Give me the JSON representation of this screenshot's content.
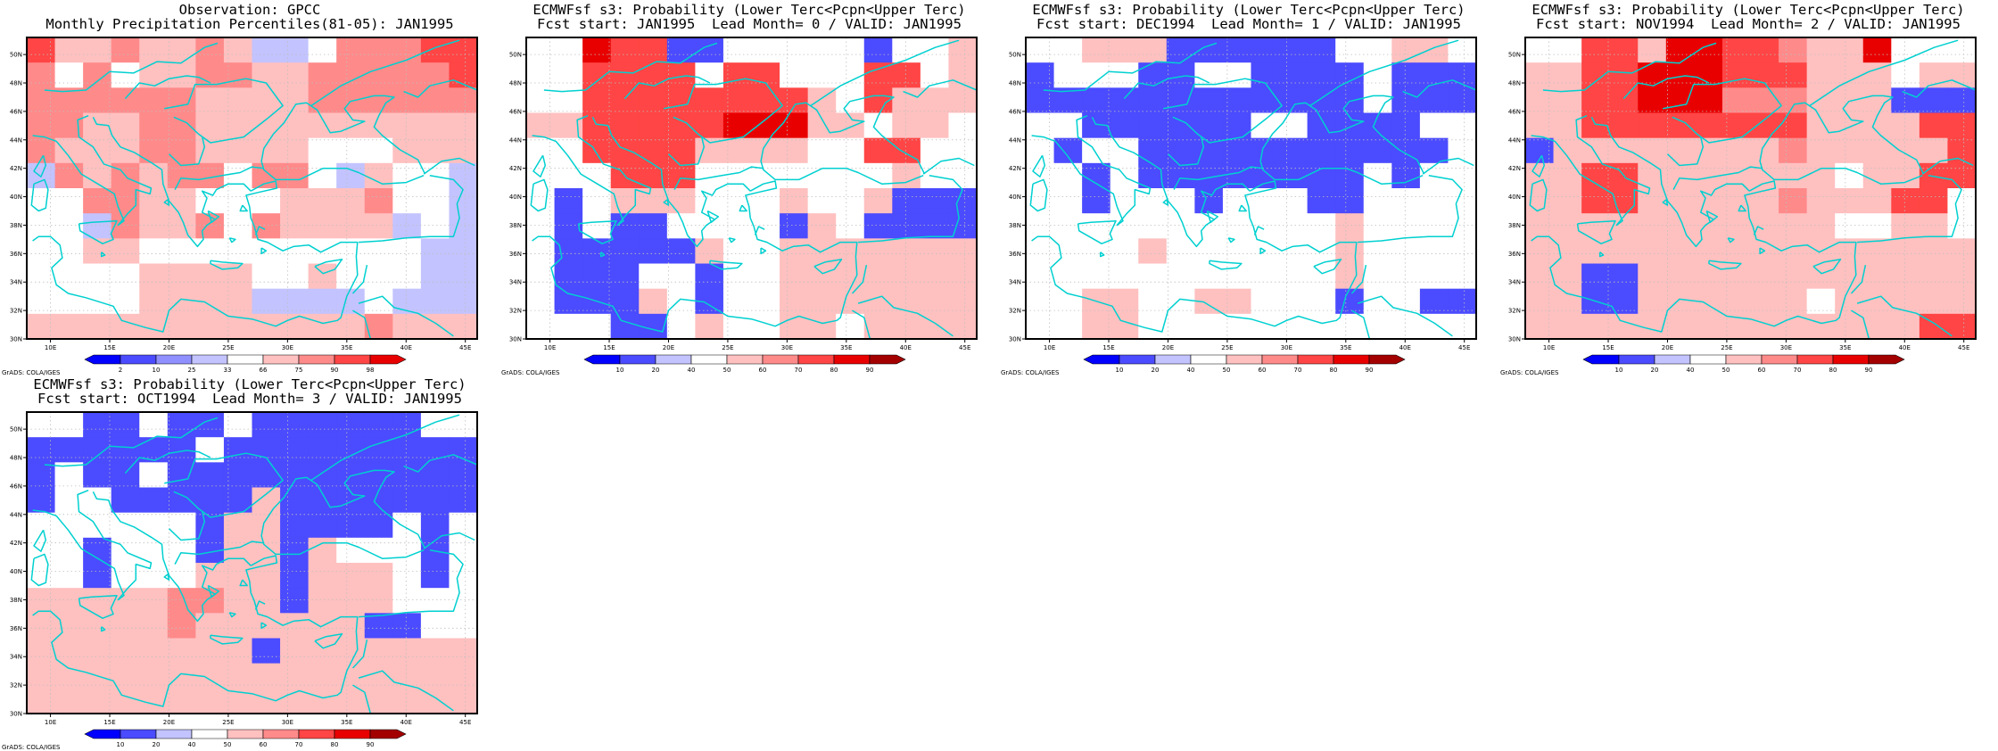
{
  "colors": {
    "coast": "#00d0d0",
    "grid": "#bfbfbf"
  },
  "axes": {
    "x_labels": [
      "10E",
      "15E",
      "20E",
      "25E",
      "30E",
      "35E",
      "40E",
      "45E"
    ],
    "y_labels": [
      "30N",
      "32N",
      "34N",
      "36N",
      "38N",
      "40N",
      "42N",
      "44N",
      "46N",
      "48N",
      "50N"
    ]
  },
  "footer": "GrADS: COLA/IGES",
  "scales": {
    "obs": {
      "labels": [
        "2",
        "10",
        "25",
        "33",
        "66",
        "75",
        "90",
        "98"
      ],
      "colors": [
        "#0000ff",
        "#4b4bff",
        "#8f8fff",
        "#c3c3ff",
        "#ffffff",
        "#ffc0c0",
        "#ff8a8a",
        "#ff4545",
        "#e80000"
      ]
    },
    "prob": {
      "labels": [
        "10",
        "20",
        "40",
        "50",
        "60",
        "70",
        "80",
        "90"
      ],
      "colors": [
        "#0000ff",
        "#4b4bff",
        "#c3c3ff",
        "#ffffff",
        "#ffc0c0",
        "#ff8a8a",
        "#ff4545",
        "#e80000",
        "#a30000"
      ]
    }
  },
  "panels": [
    {
      "title1": "Observation: GPCC",
      "title2": "Monthly Precipitation Percentiles(81-05): JAN1995",
      "scale": "obs",
      "grid": [
        "7556556533466677",
        "6464556655666667",
        "6666665555666666",
        "6655665555555555",
        "6555665555444555",
        "3656566466435443",
        "4466554445556443",
        "4436556465555343",
        "4455444444444433",
        "4444555544544433",
        "4444555533334333",
        "5555555555556555"
      ]
    },
    {
      "title1": "ECMWFsf s3: Probability (Lower Terc<Pcpn<Upper Terc)",
      "title2": "Fcst start: JAN1995  Lead Month= 0 / VALID: JAN1995",
      "scale": "prob",
      "grid": [
        "3376611333331334",
        "3366663663336634",
        "3366666666436444",
        "4466666777443443",
        "3366664444336633",
        "3336663333333433",
        "3134443334334111",
        "3131133331431111",
        "3111114334444444",
        "3111331334444444",
        "3111431334444444",
        "3331134334434444"
      ]
    },
    {
      "title1": "ECMWFsf s3: Probability (Lower Terc<Pcpn<Upper Terc)",
      "title2": "Fcst start: DEC1994  Lead Month= 1 / VALID: JAN1995",
      "scale": "prob",
      "grid": [
        "3344411111133443",
        "1333113311113111",
        "1111111111113111",
        "3311111133111133",
        "3133111111111113",
        "3313111111113133",
        "3313331333113333",
        "3333333333343333",
        "3333433333343333",
        "3333333333343333",
        "3344334433313311",
        "3344333333333333"
      ]
    },
    {
      "title1": "ECMWFsf s3: Probability (Lower Terc<Pcpn<Upper Terc)",
      "title2": "Fcst start: NOV1994  Lead Month= 2 / VALID: JAN1995",
      "scale": "prob",
      "grid": [
        "3366477665447333",
        "4466777666444344",
        "4466777555444111",
        "4466666666444466",
        "1444444445444446",
        "4466444444434466",
        "4466444445444663",
        "4444444444433443",
        "4444444444444444",
        "4411444444444444",
        "4411444444344444",
        "4444444444444466"
      ]
    },
    {
      "title1": "ECMWFsf s3: Probability (Lower Terc<Pcpn<Upper Terc)",
      "title2": "Fcst start: OCT1994  Lead Month= 3 / VALID: JAN1995",
      "scale": "prob",
      "grid": [
        "3311311311111133",
        "1111113111111111",
        "1311311111111111",
        "1331111141111111",
        "3333331441111313",
        "3313331441433313",
        "3313334441444313",
        "4444455441444333",
        "4444454444441133",
        "4444444414444444",
        "4444444444444444",
        "4444444444444444"
      ]
    }
  ]
}
